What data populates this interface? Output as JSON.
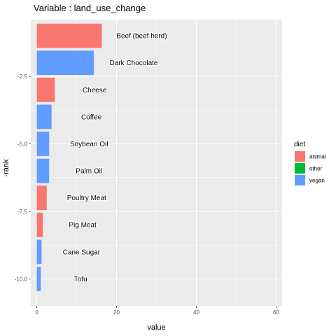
{
  "chart_data": {
    "type": "bar",
    "orientation": "horizontal",
    "title": "Variable : land_use_change",
    "xlabel": "value",
    "ylabel": "-rank",
    "xlim": [
      -1.5,
      61.5
    ],
    "ylim": [
      -11,
      -0.4
    ],
    "xticks": [
      0,
      20,
      40,
      60
    ],
    "yticks": [
      -2.5,
      -5.0,
      -7.5,
      -10.0
    ],
    "ytick_labels": [
      "-2.5",
      "-5.0",
      "-7.5",
      "-10.0"
    ],
    "grid": true,
    "bars": [
      {
        "label": "Beef (beef herd)",
        "value": 16.3,
        "rank": 1,
        "diet": "animal"
      },
      {
        "label": "Dark Chocolate",
        "value": 14.3,
        "rank": 2,
        "diet": "vegan"
      },
      {
        "label": "Cheese",
        "value": 4.5,
        "rank": 3,
        "diet": "animal"
      },
      {
        "label": "Coffee",
        "value": 3.7,
        "rank": 4,
        "diet": "vegan"
      },
      {
        "label": "Soybean Oil",
        "value": 3.1,
        "rank": 5,
        "diet": "vegan"
      },
      {
        "label": "Palm Oil",
        "value": 3.1,
        "rank": 6,
        "diet": "vegan"
      },
      {
        "label": "Poultry Meat",
        "value": 2.5,
        "rank": 7,
        "diet": "animal"
      },
      {
        "label": "Pig Meat",
        "value": 1.5,
        "rank": 8,
        "diet": "animal"
      },
      {
        "label": "Cane Sugar",
        "value": 1.2,
        "rank": 9,
        "diet": "vegan"
      },
      {
        "label": "Tofu",
        "value": 1.0,
        "rank": 10,
        "diet": "vegan"
      }
    ],
    "legend": {
      "title": "diet",
      "placement": "right",
      "items": [
        {
          "name": "animal",
          "color": "#F8766D"
        },
        {
          "name": "other",
          "color": "#00BA38"
        },
        {
          "name": "vegan",
          "color": "#619CFF"
        }
      ]
    },
    "colors": {
      "panel": "#EBEBEB",
      "grid_major": "#FFFFFF"
    }
  }
}
